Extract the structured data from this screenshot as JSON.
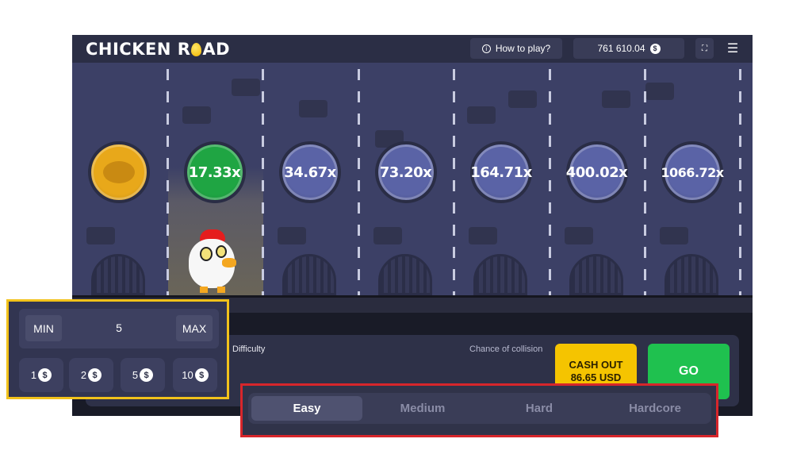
{
  "header": {
    "logo": "CHICKEN ROAD",
    "logo_left": "CHICKEN R",
    "logo_right": "AD",
    "how_to_play": "How to play?",
    "balance": "761 610.04",
    "currency_icon": "dollar-coin-icon"
  },
  "lanes": [
    {
      "type": "dead",
      "label": ""
    },
    {
      "type": "current",
      "label": "17.33x"
    },
    {
      "type": "next",
      "label": "34.67x"
    },
    {
      "type": "next",
      "label": "73.20x"
    },
    {
      "type": "next",
      "label": "164.71x"
    },
    {
      "type": "next",
      "label": "400.02x"
    },
    {
      "type": "next",
      "label": "1066.72x"
    }
  ],
  "colors": {
    "dead": "#e8a81a",
    "current": "#1fa543",
    "next": "#5a63a6",
    "cash_out": "#f5c400",
    "go": "#1fc14f",
    "highlight_yellow": "#f2c21b",
    "highlight_red": "#d7262b"
  },
  "controls": {
    "difficulty_label": "Difficulty",
    "collision_label": "Chance of collision",
    "cash_out_line1": "CASH OUT",
    "cash_out_line2": "86.65 USD",
    "go": "GO"
  },
  "bet": {
    "min": "MIN",
    "value": "5",
    "max": "MAX",
    "chips": [
      "1",
      "2",
      "5",
      "10"
    ]
  },
  "difficulty": {
    "options": [
      "Easy",
      "Medium",
      "Hard",
      "Hardcore"
    ],
    "selected": "Easy"
  }
}
